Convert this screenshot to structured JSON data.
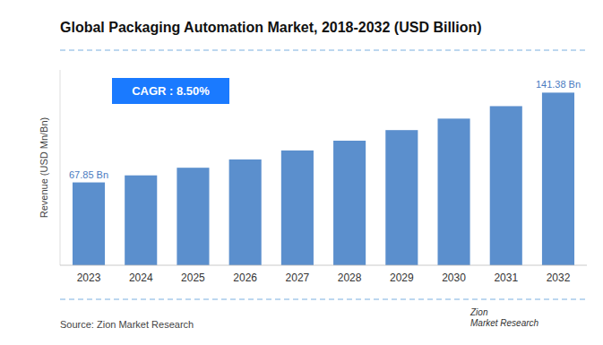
{
  "chart_data": {
    "type": "bar",
    "title": "Global Packaging Automation Market, 2018-2032 (USD Billion)",
    "ylabel": "Revenue (USD Mn/Bn)",
    "categories": [
      "2023",
      "2024",
      "2025",
      "2026",
      "2027",
      "2028",
      "2029",
      "2030",
      "2031",
      "2032"
    ],
    "values": [
      67.85,
      73.62,
      79.87,
      86.66,
      94.03,
      102.02,
      110.69,
      120.1,
      130.31,
      141.38
    ],
    "value_labels": [
      "67.85 Bn",
      null,
      null,
      null,
      null,
      null,
      null,
      null,
      null,
      "141.38 Bn"
    ],
    "data_labels": true,
    "color": "#5b8fcd",
    "ylim": [
      0,
      160
    ],
    "grid": false,
    "tick_labels": "x",
    "annotations": [
      "CAGR : 8.50%",
      "Source: Zion Market Research",
      "Zion\nMarket Research"
    ]
  }
}
